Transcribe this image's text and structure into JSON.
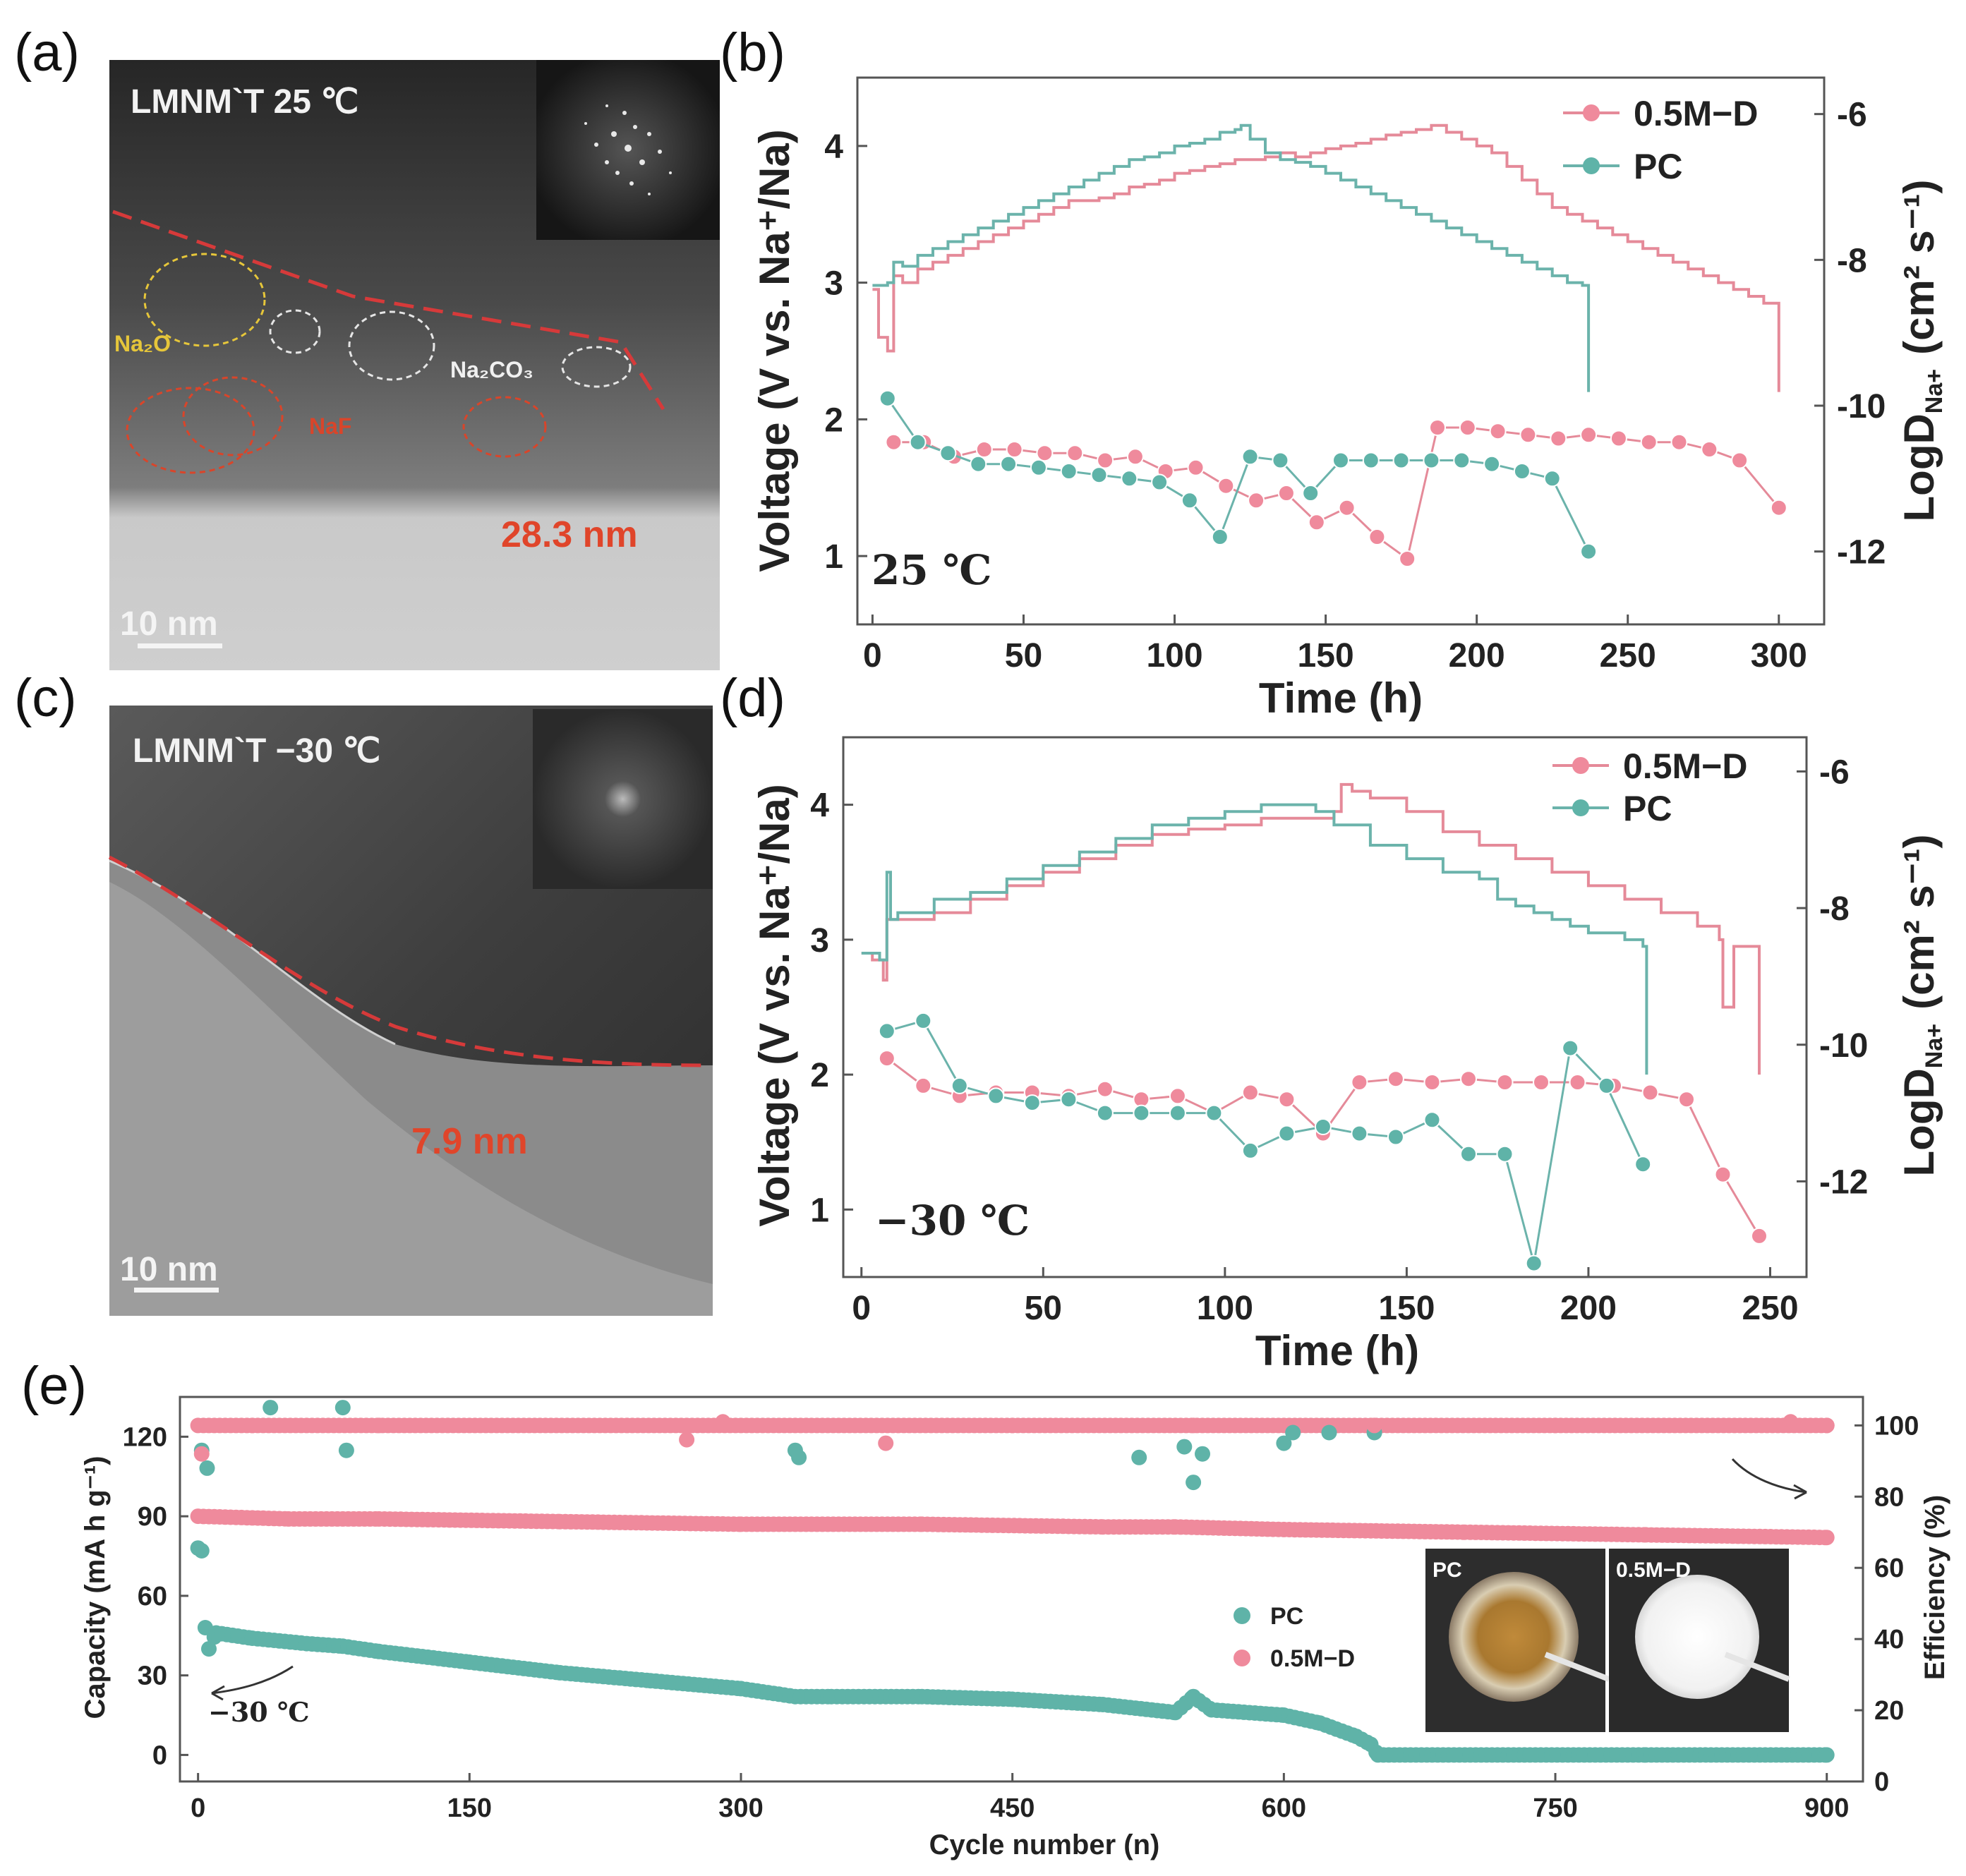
{
  "colors": {
    "pink": "#ef8a9c",
    "teal": "#5fb3a8",
    "pink_line": "#e58a99",
    "teal_line": "#6bb3ab",
    "red_dash": "#d63a3a",
    "yellow_dash": "#e6c63a"
  },
  "panels": {
    "a": "(a)",
    "b": "(b)",
    "c": "(c)",
    "d": "(d)",
    "e": "(e)"
  },
  "micrographs": {
    "a": {
      "title": "LMNM`T  25 ℃",
      "labels": {
        "na2o": "Na₂O",
        "na2co3": "Na₂CO₃",
        "naf": "NaF"
      },
      "thickness": "28.3 nm",
      "scale_bar": "10 nm"
    },
    "c": {
      "title": "LMNM`T −30 ℃",
      "thickness": "7.9 nm",
      "scale_bar": "10 nm"
    }
  },
  "chart_data": [
    {
      "id": "b",
      "type": "line",
      "title": "",
      "xlabel": "Time (h)",
      "ylabel_left": "Voltage (V vs. Na⁺/Na)",
      "ylabel_right": "LogD",
      "ylabel_right_sub": "Na+",
      "ylabel_right_units": "(cm² s⁻¹)",
      "xlim": [
        -5,
        315
      ],
      "ylim_left": [
        0.5,
        4.5
      ],
      "ylim_right": [
        -13.0,
        -5.5
      ],
      "xticks": [
        0,
        50,
        100,
        150,
        200,
        250,
        300
      ],
      "yticks_left": [
        1,
        2,
        3,
        4
      ],
      "yticks_right": [
        -12,
        -10,
        -8,
        -6
      ],
      "temperature": "25 ℃",
      "legend": [
        "0.5M−D",
        "PC"
      ],
      "voltage_series": [
        {
          "name": "0.5M−D",
          "x": [
            0,
            2,
            5,
            7,
            10,
            15,
            20,
            25,
            30,
            35,
            40,
            45,
            50,
            55,
            60,
            65,
            70,
            75,
            80,
            85,
            90,
            95,
            100,
            105,
            110,
            115,
            120,
            125,
            130,
            135,
            140,
            145,
            150,
            155,
            160,
            165,
            170,
            175,
            180,
            185,
            190,
            195,
            200,
            205,
            210,
            215,
            220,
            225,
            230,
            235,
            240,
            245,
            250,
            255,
            260,
            265,
            270,
            275,
            280,
            285,
            290,
            295,
            300
          ],
          "y": [
            2.95,
            2.6,
            2.5,
            3.05,
            3.0,
            3.1,
            3.15,
            3.2,
            3.25,
            3.3,
            3.35,
            3.4,
            3.45,
            3.5,
            3.55,
            3.6,
            3.6,
            3.62,
            3.65,
            3.7,
            3.72,
            3.75,
            3.8,
            3.82,
            3.85,
            3.87,
            3.9,
            3.9,
            3.92,
            3.95,
            3.92,
            3.95,
            3.98,
            4.0,
            4.02,
            4.05,
            4.08,
            4.1,
            4.12,
            4.15,
            4.1,
            4.05,
            4.0,
            3.95,
            3.85,
            3.75,
            3.65,
            3.55,
            3.5,
            3.45,
            3.4,
            3.35,
            3.3,
            3.25,
            3.2,
            3.15,
            3.1,
            3.05,
            3.0,
            2.95,
            2.9,
            2.85,
            2.2
          ]
        },
        {
          "name": "PC",
          "x": [
            0,
            5,
            7,
            10,
            15,
            20,
            25,
            30,
            35,
            40,
            45,
            50,
            55,
            60,
            65,
            70,
            75,
            80,
            85,
            90,
            95,
            100,
            105,
            110,
            115,
            120,
            122,
            125,
            130,
            135,
            140,
            145,
            150,
            155,
            160,
            165,
            170,
            175,
            180,
            185,
            190,
            195,
            200,
            205,
            210,
            215,
            220,
            225,
            230,
            235,
            237
          ],
          "y": [
            2.98,
            3.0,
            3.15,
            3.12,
            3.2,
            3.25,
            3.3,
            3.35,
            3.4,
            3.45,
            3.5,
            3.55,
            3.6,
            3.65,
            3.7,
            3.75,
            3.8,
            3.85,
            3.9,
            3.92,
            3.95,
            4.0,
            4.02,
            4.05,
            4.1,
            4.12,
            4.15,
            4.05,
            3.95,
            3.9,
            3.88,
            3.85,
            3.8,
            3.75,
            3.7,
            3.65,
            3.6,
            3.55,
            3.5,
            3.45,
            3.4,
            3.35,
            3.3,
            3.25,
            3.2,
            3.15,
            3.1,
            3.05,
            3.0,
            2.98,
            2.2
          ]
        }
      ],
      "logd_series": [
        {
          "name": "0.5M−D",
          "x": [
            7,
            17,
            27,
            37,
            47,
            57,
            67,
            77,
            87,
            97,
            107,
            117,
            127,
            137,
            147,
            157,
            167,
            177,
            187,
            197,
            207,
            217,
            227,
            237,
            247,
            257,
            267,
            277,
            287,
            300
          ],
          "y": [
            -10.5,
            -10.5,
            -10.7,
            -10.6,
            -10.6,
            -10.65,
            -10.65,
            -10.75,
            -10.7,
            -10.9,
            -10.85,
            -11.1,
            -11.3,
            -11.2,
            -11.6,
            -11.4,
            -11.8,
            -12.1,
            -10.3,
            -10.3,
            -10.35,
            -10.4,
            -10.45,
            -10.4,
            -10.45,
            -10.5,
            -10.5,
            -10.6,
            -10.75,
            -11.4
          ]
        },
        {
          "name": "PC",
          "x": [
            5,
            15,
            25,
            35,
            45,
            55,
            65,
            75,
            85,
            95,
            105,
            115,
            125,
            135,
            145,
            155,
            165,
            175,
            185,
            195,
            205,
            215,
            225,
            237
          ],
          "y": [
            -9.9,
            -10.5,
            -10.65,
            -10.8,
            -10.8,
            -10.85,
            -10.9,
            -10.95,
            -11.0,
            -11.05,
            -11.3,
            -11.8,
            -10.7,
            -10.75,
            -11.2,
            -10.75,
            -10.75,
            -10.75,
            -10.75,
            -10.75,
            -10.8,
            -10.9,
            -11.0,
            -12.0
          ]
        }
      ]
    },
    {
      "id": "d",
      "type": "line",
      "title": "",
      "xlabel": "Time (h)",
      "ylabel_left": "Voltage (V vs. Na⁺/Na)",
      "ylabel_right": "LogD",
      "ylabel_right_sub": "Na+",
      "ylabel_right_units": "(cm² s⁻¹)",
      "xlim": [
        -5,
        260
      ],
      "ylim_left": [
        0.5,
        4.5
      ],
      "ylim_right": [
        -13.4,
        -5.5
      ],
      "xticks": [
        0,
        50,
        100,
        150,
        200,
        250
      ],
      "yticks_left": [
        1,
        2,
        3,
        4
      ],
      "yticks_right": [
        -12,
        -10,
        -8,
        -6
      ],
      "temperature": "−30 ℃",
      "legend": [
        "0.5M−D",
        "PC"
      ],
      "voltage_series": [
        {
          "name": "0.5M−D",
          "x": [
            0,
            3,
            6,
            7,
            10,
            20,
            30,
            40,
            50,
            60,
            70,
            80,
            90,
            100,
            110,
            120,
            130,
            132,
            135,
            140,
            150,
            160,
            170,
            180,
            190,
            200,
            210,
            220,
            230,
            236,
            237,
            240,
            245,
            247
          ],
          "y": [
            2.9,
            2.85,
            2.7,
            3.15,
            3.15,
            3.2,
            3.3,
            3.4,
            3.5,
            3.6,
            3.7,
            3.78,
            3.82,
            3.85,
            3.9,
            3.9,
            3.95,
            4.15,
            4.1,
            4.05,
            3.95,
            3.8,
            3.7,
            3.6,
            3.5,
            3.4,
            3.3,
            3.2,
            3.1,
            3.0,
            2.5,
            2.95,
            2.95,
            2.0
          ]
        },
        {
          "name": "PC",
          "x": [
            0,
            3,
            5,
            7,
            8,
            10,
            20,
            30,
            40,
            50,
            60,
            70,
            80,
            90,
            100,
            110,
            120,
            125,
            130,
            140,
            150,
            160,
            170,
            175,
            180,
            185,
            190,
            195,
            200,
            205,
            210,
            215,
            216
          ],
          "y": [
            2.9,
            2.9,
            2.85,
            3.5,
            3.15,
            3.2,
            3.3,
            3.35,
            3.45,
            3.55,
            3.65,
            3.75,
            3.85,
            3.9,
            3.95,
            4.0,
            4.0,
            3.95,
            3.85,
            3.7,
            3.6,
            3.5,
            3.45,
            3.3,
            3.25,
            3.2,
            3.15,
            3.1,
            3.05,
            3.05,
            3.0,
            2.95,
            2.0
          ]
        }
      ],
      "logd_series": [
        {
          "name": "0.5M−D",
          "x": [
            7,
            17,
            27,
            37,
            47,
            57,
            67,
            77,
            87,
            97,
            107,
            117,
            127,
            137,
            147,
            157,
            167,
            177,
            187,
            197,
            207,
            217,
            227,
            237,
            247
          ],
          "y": [
            -10.2,
            -10.6,
            -10.75,
            -10.7,
            -10.7,
            -10.75,
            -10.65,
            -10.8,
            -10.75,
            -11.0,
            -10.7,
            -10.8,
            -11.3,
            -10.55,
            -10.5,
            -10.55,
            -10.5,
            -10.55,
            -10.55,
            -10.55,
            -10.6,
            -10.7,
            -10.8,
            -11.9,
            -12.8
          ]
        },
        {
          "name": "PC",
          "x": [
            7,
            17,
            27,
            37,
            47,
            57,
            67,
            77,
            87,
            97,
            107,
            117,
            127,
            137,
            147,
            157,
            167,
            177,
            185,
            195,
            205,
            215
          ],
          "y": [
            -9.8,
            -9.65,
            -10.6,
            -10.75,
            -10.85,
            -10.8,
            -11.0,
            -11.0,
            -11.0,
            -11.0,
            -11.55,
            -11.3,
            -11.2,
            -11.3,
            -11.35,
            -11.1,
            -11.6,
            -11.6,
            -13.2,
            -10.05,
            -10.6,
            -11.75
          ]
        }
      ]
    },
    {
      "id": "e",
      "type": "scatter",
      "title": "",
      "xlabel": "Cycle number (n)",
      "ylabel_left": "Capacity (mA h g⁻¹)",
      "ylabel_right": "Efficiency (%)",
      "xlim": [
        -10,
        920
      ],
      "ylim_left": [
        -10,
        135
      ],
      "ylim_right": [
        0,
        108
      ],
      "xticks": [
        0,
        150,
        300,
        450,
        600,
        750,
        900
      ],
      "yticks_left": [
        0,
        30,
        60,
        90,
        120
      ],
      "yticks_right": [
        0,
        20,
        40,
        60,
        80,
        100
      ],
      "temperature": "−30 ℃",
      "legend": [
        "PC",
        "0.5M−D"
      ],
      "capacity_series": [
        {
          "name": "PC",
          "x": [
            0,
            2,
            4,
            6,
            10,
            30,
            60,
            80,
            100,
            150,
            200,
            250,
            300,
            330,
            350,
            400,
            450,
            500,
            540,
            550,
            560,
            600,
            620,
            640,
            648,
            652,
            700,
            800,
            900
          ],
          "y": [
            78,
            77,
            48,
            40,
            46,
            44,
            42,
            41,
            39,
            35,
            31,
            28,
            25,
            22,
            22,
            22,
            21,
            19,
            16,
            22,
            17,
            15,
            12,
            7,
            4,
            0,
            0,
            0,
            0
          ]
        },
        {
          "name": "0.5M−D",
          "x": [
            0,
            50,
            100,
            200,
            300,
            400,
            500,
            540,
            600,
            700,
            800,
            900
          ],
          "y": [
            90,
            89,
            89,
            88,
            87,
            87,
            86,
            86,
            85,
            84,
            83,
            82
          ]
        }
      ],
      "efficiency_series": [
        {
          "name": "PC",
          "x": [
            2,
            5,
            40,
            80,
            82,
            330,
            332,
            520,
            545,
            550,
            555,
            600,
            605,
            625,
            650
          ],
          "y": [
            93,
            88,
            105,
            105,
            93,
            93,
            91,
            91,
            94,
            84,
            92,
            95,
            98,
            98,
            98
          ]
        },
        {
          "name": "0.5M−D",
          "x": [
            2,
            30,
            100,
            270,
            290,
            380,
            450,
            550,
            650,
            750,
            880,
            900
          ],
          "y": [
            92,
            100,
            100,
            96,
            101,
            95,
            100,
            100,
            100,
            100,
            101,
            100
          ]
        }
      ],
      "inset_photos": {
        "left": "PC",
        "right": "0.5M−D"
      }
    }
  ]
}
